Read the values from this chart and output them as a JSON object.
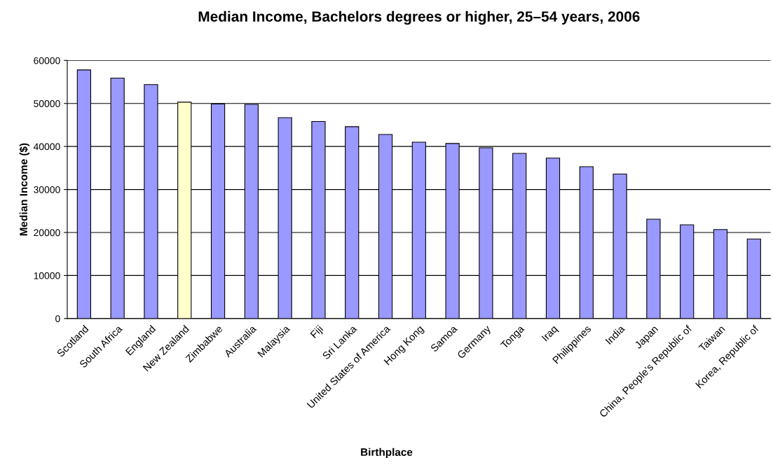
{
  "chart_data": {
    "type": "bar",
    "title": "Median Income, Bachelors degrees or higher, 25–54 years, 2006",
    "xlabel": "Birthplace",
    "ylabel": "Median Income ($)",
    "categories": [
      "Scotland",
      "South Africa",
      "England",
      "New Zealand",
      "Zimbabwe",
      "Australia",
      "Malaysia",
      "Fiji",
      "Sri Lanka",
      "United States of America",
      "Hong Kong",
      "Samoa",
      "Germany",
      "Tonga",
      "Iraq",
      "Philippines",
      "India",
      "Japan",
      "China, People's Republic of",
      "Taiwan",
      "Korea, Republic of"
    ],
    "values": [
      57800,
      55900,
      54400,
      50300,
      49900,
      49800,
      46700,
      45800,
      44600,
      42800,
      41000,
      40700,
      39700,
      38400,
      37300,
      35300,
      33600,
      23100,
      21800,
      20700,
      18500
    ],
    "colors": [
      "#9999ff",
      "#9999ff",
      "#9999ff",
      "#ffffcc",
      "#9999ff",
      "#9999ff",
      "#9999ff",
      "#9999ff",
      "#9999ff",
      "#9999ff",
      "#9999ff",
      "#9999ff",
      "#9999ff",
      "#9999ff",
      "#9999ff",
      "#9999ff",
      "#9999ff",
      "#9999ff",
      "#9999ff",
      "#9999ff",
      "#9999ff"
    ],
    "ylim": [
      0,
      60000
    ],
    "yticks": [
      0,
      10000,
      20000,
      30000,
      40000,
      50000,
      60000
    ],
    "grid": "y",
    "legend": false
  }
}
